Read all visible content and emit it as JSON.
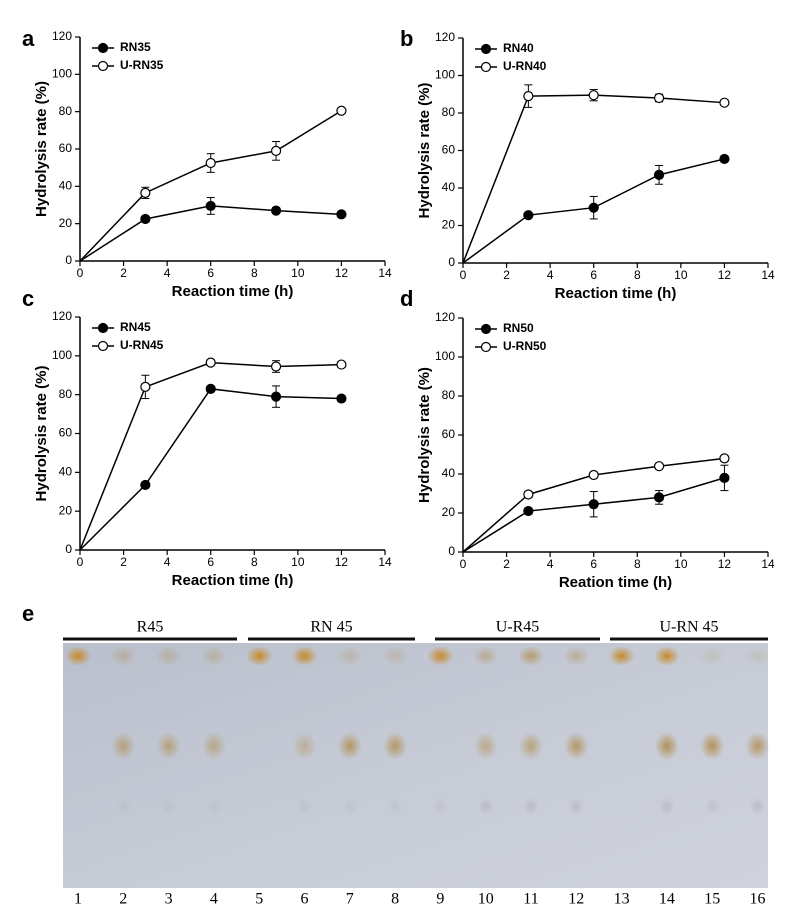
{
  "chart_data": [
    {
      "type": "line",
      "label": "a",
      "xlabel": "Reaction time (h)",
      "ylabel": "Hydrolysis rate (%)",
      "x": [
        0,
        3,
        6,
        9,
        12
      ],
      "xlim": [
        0,
        14
      ],
      "xticks": [
        0,
        2,
        4,
        6,
        8,
        10,
        12,
        14
      ],
      "ylim": [
        0,
        120
      ],
      "yticks": [
        0,
        20,
        40,
        60,
        80,
        100,
        120
      ],
      "series": [
        {
          "name": "RN35",
          "color": "#000000",
          "marker": "filled",
          "values": [
            0,
            22.5,
            29.5,
            27,
            25
          ],
          "errors": [
            0,
            1.5,
            4.5,
            1.5,
            1.5
          ]
        },
        {
          "name": "U-RN35",
          "color": "#000000",
          "marker": "open",
          "values": [
            0,
            36.5,
            52.5,
            59,
            80.5
          ],
          "errors": [
            0,
            3,
            5,
            5,
            1.5
          ]
        }
      ]
    },
    {
      "type": "line",
      "label": "b",
      "xlabel": "Reaction time (h)",
      "ylabel": "Hydrolysis rate (%)",
      "x": [
        0,
        3,
        6,
        9,
        12
      ],
      "xlim": [
        0,
        14
      ],
      "xticks": [
        0,
        2,
        4,
        6,
        8,
        10,
        12,
        14
      ],
      "ylim": [
        0,
        120
      ],
      "yticks": [
        0,
        20,
        40,
        60,
        80,
        100,
        120
      ],
      "series": [
        {
          "name": "RN40",
          "color": "#000000",
          "marker": "filled",
          "values": [
            0,
            25.5,
            29.5,
            47,
            55.5
          ],
          "errors": [
            0,
            1.5,
            6,
            5,
            1.5
          ]
        },
        {
          "name": "U-RN40",
          "color": "#000000",
          "marker": "open",
          "values": [
            0,
            89,
            89.5,
            88,
            85.5
          ],
          "errors": [
            0,
            6,
            3,
            2,
            1.5
          ]
        }
      ]
    },
    {
      "type": "line",
      "label": "c",
      "xlabel": "Reaction time (h)",
      "ylabel": "Hydrolysis rate (%)",
      "x": [
        0,
        3,
        6,
        9,
        12
      ],
      "xlim": [
        0,
        14
      ],
      "xticks": [
        0,
        2,
        4,
        6,
        8,
        10,
        12,
        14
      ],
      "ylim": [
        0,
        120
      ],
      "yticks": [
        0,
        20,
        40,
        60,
        80,
        100,
        120
      ],
      "series": [
        {
          "name": "RN45",
          "color": "#000000",
          "marker": "filled",
          "values": [
            0,
            33.5,
            83,
            79,
            78
          ],
          "errors": [
            0,
            1.5,
            1.5,
            5.5,
            1.5
          ]
        },
        {
          "name": "U-RN45",
          "color": "#000000",
          "marker": "open",
          "values": [
            0,
            84,
            96.5,
            94.5,
            95.5
          ],
          "errors": [
            0,
            6,
            1.5,
            3,
            1.5
          ]
        }
      ]
    },
    {
      "type": "line",
      "label": "d",
      "xlabel": "Reation time (h)",
      "ylabel": "Hydrolysis rate (%)",
      "x": [
        0,
        3,
        6,
        9,
        12
      ],
      "xlim": [
        0,
        14
      ],
      "xticks": [
        0,
        2,
        4,
        6,
        8,
        10,
        12,
        14
      ],
      "ylim": [
        0,
        120
      ],
      "yticks": [
        0,
        20,
        40,
        60,
        80,
        100,
        120
      ],
      "series": [
        {
          "name": "RN50",
          "color": "#000000",
          "marker": "filled",
          "values": [
            0,
            21,
            24.5,
            28,
            38
          ],
          "errors": [
            0,
            1.5,
            6.5,
            3.5,
            6.5
          ]
        },
        {
          "name": "U-RN50",
          "color": "#000000",
          "marker": "open",
          "values": [
            0,
            29.5,
            39.5,
            44,
            48
          ],
          "errors": [
            0,
            1.5,
            1.5,
            1.5,
            1.5
          ]
        }
      ]
    }
  ],
  "gel": {
    "label": "e",
    "groups": [
      "R45",
      "RN 45",
      "U-R45",
      "U-RN 45"
    ],
    "lanes": [
      1,
      2,
      3,
      4,
      5,
      6,
      7,
      8,
      9,
      10,
      11,
      12,
      13,
      14,
      15,
      16
    ]
  }
}
